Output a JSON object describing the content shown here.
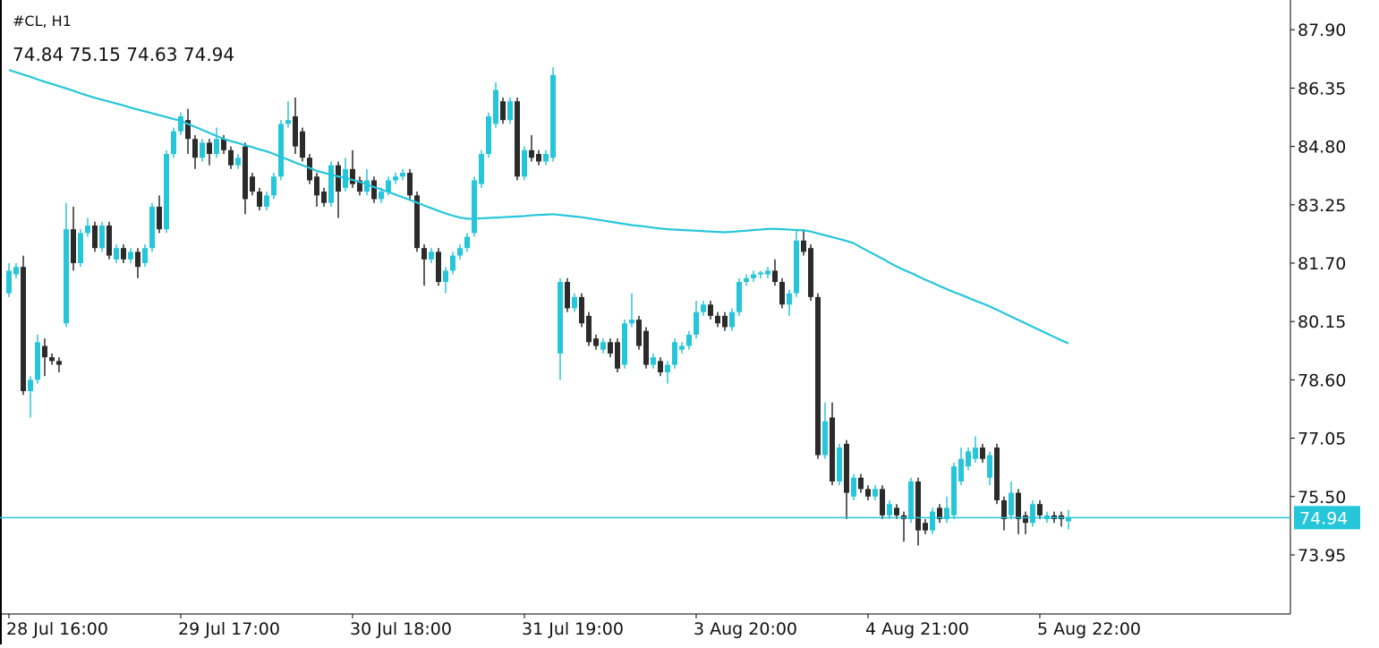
{
  "chart_data": {
    "type": "candlestick",
    "title": "#CL, H1",
    "categories": [
      "28 Jul 16:00",
      null,
      null,
      null,
      null,
      null,
      null,
      null,
      null,
      null,
      null,
      null,
      null,
      null,
      null,
      null,
      null,
      null,
      null,
      null,
      null,
      null,
      null,
      null,
      "29 Jul 17:00",
      null,
      null,
      null,
      null,
      null,
      null,
      null,
      null,
      null,
      null,
      null,
      null,
      null,
      null,
      null,
      null,
      null,
      null,
      null,
      null,
      null,
      null,
      null,
      "30 Jul 18:00",
      null,
      null,
      null,
      null,
      null,
      null,
      null,
      null,
      null,
      null,
      null,
      null,
      null,
      null,
      null,
      null,
      null,
      null,
      null,
      null,
      null,
      null,
      null,
      "31 Jul 19:00",
      null,
      null,
      null,
      null,
      null,
      null,
      null,
      null,
      null,
      null,
      null,
      null,
      null,
      null,
      null,
      null,
      null,
      null,
      null,
      null,
      null,
      null,
      null,
      "3 Aug 20:00",
      null,
      null,
      null,
      null,
      null,
      null,
      null,
      null,
      null,
      null,
      null,
      null,
      null,
      null,
      null,
      null,
      null,
      null,
      null,
      null,
      null,
      null,
      null,
      "4 Aug 21:00",
      null,
      null,
      null,
      null,
      null,
      null,
      null,
      null,
      null,
      null,
      null,
      null,
      null,
      null,
      null,
      null,
      null,
      null,
      null,
      null,
      null,
      null,
      null,
      "5 Aug 22:00",
      null,
      null,
      null,
      null
    ],
    "open": [
      80.9,
      81.4,
      81.6,
      78.3,
      78.6,
      79.5,
      79.2,
      79.1,
      80.1,
      82.6,
      81.7,
      82.5,
      82.7,
      82.1,
      82.7,
      81.8,
      82.1,
      81.8,
      82.0,
      81.7,
      82.1,
      83.2,
      82.6,
      84.6,
      85.2,
      85.5,
      85.0,
      84.5,
      84.9,
      84.6,
      85.0,
      84.7,
      84.3,
      84.8,
      84.0,
      83.6,
      83.2,
      83.5,
      84.0,
      85.4,
      85.6,
      85.2,
      84.5,
      84.0,
      83.6,
      83.3,
      84.3,
      83.7,
      84.2,
      83.9,
      83.6,
      83.9,
      83.4,
      83.6,
      83.9,
      84.0,
      84.1,
      83.5,
      82.1,
      81.8,
      82.0,
      81.2,
      81.5,
      81.9,
      82.1,
      82.5,
      83.8,
      84.6,
      85.4,
      86.0,
      85.5,
      86.0,
      84.0,
      84.7,
      84.6,
      84.4,
      84.5,
      79.3,
      81.2,
      80.5,
      80.8,
      80.3,
      79.7,
      79.4,
      79.6,
      79.6,
      79.0,
      80.1,
      80.2,
      79.9,
      79.0,
      79.1,
      78.8,
      79.0,
      79.4,
      79.5,
      79.8,
      80.4,
      80.6,
      80.3,
      80.3,
      80.0,
      80.4,
      81.2,
      81.3,
      81.4,
      81.4,
      81.5,
      81.2,
      80.6,
      80.9,
      82.3,
      82.1,
      80.8,
      76.6,
      77.6,
      75.9,
      76.9,
      75.5,
      76.0,
      75.7,
      75.5,
      75.7,
      75.0,
      75.2,
      75.0,
      74.9,
      75.9,
      74.8,
      74.6,
      75.2,
      74.9,
      75.0,
      75.9,
      76.3,
      76.5,
      76.8,
      76.0,
      76.8,
      75.4,
      75.0,
      75.6,
      75.0,
      74.8,
      75.3,
      74.9,
      75.0,
      75.0,
      74.84
    ],
    "high": [
      81.7,
      81.7,
      81.9,
      78.7,
      79.8,
      79.7,
      79.3,
      79.2,
      83.3,
      83.2,
      82.6,
      82.9,
      82.8,
      82.8,
      82.8,
      82.2,
      82.2,
      82.1,
      82.1,
      82.2,
      83.3,
      83.5,
      84.7,
      85.3,
      85.7,
      85.8,
      85.1,
      85.0,
      85.0,
      85.3,
      85.1,
      84.8,
      84.6,
      84.9,
      84.1,
      83.7,
      83.6,
      84.1,
      85.5,
      86.0,
      86.1,
      85.3,
      84.6,
      84.1,
      83.7,
      84.4,
      84.4,
      84.5,
      84.7,
      84.0,
      84.2,
      84.0,
      83.7,
      84.0,
      84.1,
      84.2,
      84.2,
      83.6,
      82.2,
      82.1,
      82.1,
      81.6,
      82.0,
      82.2,
      82.5,
      84.0,
      84.7,
      85.7,
      86.5,
      86.1,
      86.1,
      86.1,
      84.8,
      85.1,
      84.7,
      84.7,
      86.9,
      81.3,
      81.3,
      80.9,
      80.9,
      80.4,
      79.8,
      79.7,
      79.7,
      79.7,
      80.2,
      80.9,
      80.3,
      80.0,
      79.3,
      79.2,
      79.1,
      79.7,
      79.6,
      79.9,
      80.7,
      80.7,
      80.7,
      80.4,
      80.4,
      80.5,
      81.3,
      81.4,
      81.5,
      81.5,
      81.6,
      81.8,
      81.3,
      81.0,
      82.6,
      82.6,
      82.2,
      80.9,
      78.0,
      78.0,
      76.9,
      77.0,
      76.1,
      76.1,
      75.8,
      75.8,
      75.8,
      75.4,
      75.3,
      75.1,
      76.0,
      76.0,
      74.9,
      75.2,
      75.3,
      75.5,
      76.4,
      76.8,
      76.8,
      77.1,
      76.9,
      76.7,
      76.9,
      75.5,
      75.9,
      75.7,
      75.1,
      75.4,
      75.4,
      75.1,
      75.1,
      75.1,
      75.15
    ],
    "low": [
      80.8,
      81.3,
      78.2,
      77.6,
      78.5,
      78.7,
      79.0,
      78.8,
      80.0,
      81.5,
      81.6,
      82.4,
      82.0,
      82.0,
      81.8,
      81.7,
      81.7,
      81.7,
      81.3,
      81.6,
      82.0,
      82.5,
      82.5,
      84.5,
      85.1,
      84.6,
      84.2,
      84.4,
      84.3,
      84.5,
      84.6,
      84.2,
      84.2,
      83.0,
      83.5,
      83.1,
      83.1,
      83.4,
      83.9,
      85.3,
      84.6,
      84.4,
      83.8,
      83.2,
      83.2,
      83.2,
      82.9,
      83.6,
      83.7,
      83.5,
      83.5,
      83.3,
      83.3,
      83.5,
      83.8,
      83.9,
      83.4,
      82.0,
      81.1,
      81.7,
      81.1,
      80.9,
      81.4,
      81.8,
      82.0,
      82.4,
      83.7,
      84.5,
      85.3,
      85.4,
      85.4,
      83.9,
      83.9,
      84.4,
      84.3,
      84.3,
      84.4,
      78.6,
      80.4,
      80.4,
      80.0,
      79.5,
      79.4,
      79.3,
      79.2,
      78.8,
      78.9,
      80.0,
      79.4,
      78.9,
      78.9,
      78.7,
      78.5,
      78.9,
      79.3,
      79.4,
      79.7,
      80.3,
      80.2,
      80.0,
      79.9,
      79.9,
      80.3,
      81.1,
      81.2,
      81.3,
      81.3,
      81.1,
      80.5,
      80.3,
      80.8,
      81.9,
      80.7,
      76.5,
      76.5,
      75.8,
      75.8,
      74.9,
      75.4,
      75.6,
      75.4,
      75.4,
      74.9,
      74.9,
      74.9,
      74.3,
      74.8,
      74.2,
      74.5,
      74.5,
      74.8,
      74.8,
      74.9,
      75.8,
      76.2,
      76.4,
      76.4,
      75.8,
      75.3,
      74.6,
      74.9,
      74.5,
      74.5,
      74.7,
      74.9,
      74.8,
      74.8,
      74.7,
      74.63
    ],
    "close": [
      81.5,
      81.6,
      78.3,
      78.6,
      79.6,
      79.2,
      79.1,
      79.0,
      82.6,
      81.7,
      82.5,
      82.7,
      82.1,
      82.7,
      81.9,
      82.1,
      81.8,
      82.0,
      81.6,
      82.1,
      83.2,
      82.6,
      84.6,
      85.2,
      85.6,
      85.0,
      84.5,
      84.9,
      84.6,
      85.0,
      84.7,
      84.3,
      84.5,
      83.4,
      83.6,
      83.2,
      83.5,
      84.0,
      85.4,
      85.5,
      84.8,
      84.5,
      83.9,
      83.5,
      83.3,
      84.3,
      83.6,
      84.2,
      83.8,
      83.6,
      83.9,
      83.4,
      83.6,
      83.9,
      84.0,
      84.1,
      83.5,
      82.1,
      81.8,
      82.0,
      81.2,
      81.5,
      81.9,
      82.1,
      82.4,
      83.9,
      84.6,
      85.6,
      86.3,
      85.5,
      86.0,
      84.0,
      84.7,
      84.5,
      84.4,
      84.6,
      86.7,
      81.2,
      80.5,
      80.8,
      80.1,
      79.6,
      79.5,
      79.6,
      79.3,
      78.9,
      80.1,
      80.2,
      79.5,
      79.0,
      79.2,
      78.8,
      79.0,
      79.6,
      79.5,
      79.8,
      80.4,
      80.6,
      80.3,
      80.1,
      80.0,
      80.4,
      81.2,
      81.3,
      81.4,
      81.45,
      81.5,
      81.2,
      80.6,
      80.9,
      82.3,
      82.0,
      80.8,
      76.6,
      77.5,
      75.9,
      76.8,
      75.6,
      76.0,
      75.7,
      75.5,
      75.7,
      75.0,
      75.3,
      75.0,
      74.9,
      75.9,
      74.6,
      74.6,
      75.1,
      74.9,
      75.2,
      76.3,
      76.5,
      76.7,
      76.8,
      76.5,
      76.6,
      75.4,
      74.9,
      75.6,
      74.9,
      74.8,
      75.3,
      75.0,
      75.0,
      74.9,
      74.9,
      74.94
    ],
    "up_color": "#26c6da",
    "down_color": "#2b2b2b",
    "ma": {
      "color": "#26c6da",
      "values": [
        86.83,
        86.77,
        86.71,
        86.65,
        86.58,
        86.52,
        86.46,
        86.4,
        86.34,
        86.28,
        86.21,
        86.15,
        86.09,
        86.04,
        85.99,
        85.94,
        85.89,
        85.83,
        85.78,
        85.73,
        85.68,
        85.63,
        85.58,
        85.53,
        85.48,
        85.4,
        85.32,
        85.24,
        85.16,
        85.08,
        85.0,
        84.94,
        84.89,
        84.83,
        84.78,
        84.72,
        84.67,
        84.6,
        84.52,
        84.45,
        84.37,
        84.3,
        84.23,
        84.15,
        84.1,
        84.05,
        84.0,
        83.96,
        83.91,
        83.86,
        83.79,
        83.72,
        83.66,
        83.59,
        83.52,
        83.45,
        83.38,
        83.31,
        83.23,
        83.16,
        83.09,
        83.02,
        82.96,
        82.91,
        82.88,
        82.88,
        82.89,
        82.9,
        82.91,
        82.92,
        82.93,
        82.94,
        82.95,
        82.97,
        82.98,
        82.99,
        83.0,
        82.98,
        82.96,
        82.94,
        82.92,
        82.89,
        82.86,
        82.83,
        82.8,
        82.77,
        82.74,
        82.71,
        82.69,
        82.67,
        82.64,
        82.62,
        82.6,
        82.59,
        82.58,
        82.57,
        82.56,
        82.55,
        82.54,
        82.53,
        82.52,
        82.53,
        82.55,
        82.56,
        82.58,
        82.59,
        82.61,
        82.61,
        82.6,
        82.59,
        82.58,
        82.57,
        82.54,
        82.49,
        82.44,
        82.39,
        82.34,
        82.29,
        82.23,
        82.12,
        82.02,
        81.92,
        81.82,
        81.71,
        81.61,
        81.52,
        81.44,
        81.35,
        81.26,
        81.18,
        81.09,
        81.01,
        80.93,
        80.86,
        80.78,
        80.7,
        80.63,
        80.55,
        80.46,
        80.37,
        80.28,
        80.19,
        80.1,
        80.01,
        79.92,
        79.83,
        79.74,
        79.65,
        79.57
      ]
    },
    "ylim": [
      72.38,
      88.69
    ],
    "yticks": [
      {
        "value": 87.9,
        "label": "87.90"
      },
      86.35,
      {
        "value": 84.8,
        "label": "84.80"
      },
      83.25,
      {
        "value": 81.7,
        "label": "81.70"
      },
      80.15,
      {
        "value": 78.6,
        "label": "78.60"
      },
      77.05,
      {
        "value": 75.5,
        "label": "75.50"
      },
      73.95
    ]
  }
}
